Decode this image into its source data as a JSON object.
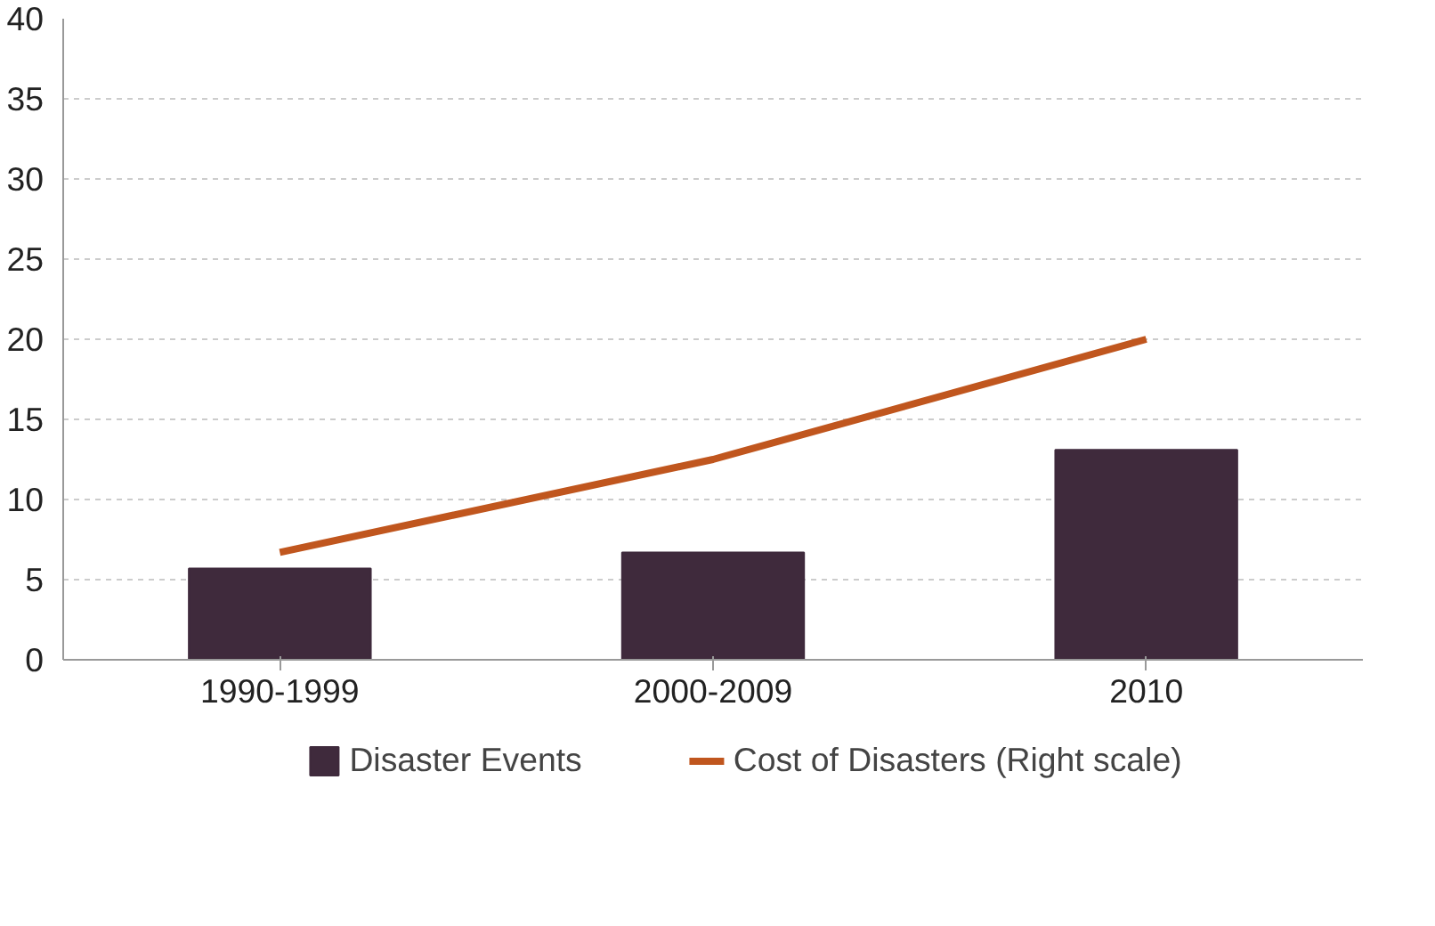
{
  "chart_data": {
    "type": "bar",
    "categories": [
      "1990-1999",
      "2000-2009",
      "2010"
    ],
    "series": [
      {
        "name": "Disaster Events",
        "color": "#3f2a3c",
        "values": [
          5.7,
          6.7,
          13.1
        ]
      },
      {
        "name": "Cost of Disasters (Right scale)",
        "type": "line",
        "color": "#c0561e",
        "values": [
          6.7,
          12.5,
          20
        ]
      }
    ],
    "ylim": [
      0,
      40
    ],
    "yticks": [
      0,
      5,
      10,
      15,
      20,
      25,
      30,
      35,
      40
    ],
    "grid": "y",
    "legend": "bottom",
    "line_style": "solid",
    "marker": "none"
  }
}
